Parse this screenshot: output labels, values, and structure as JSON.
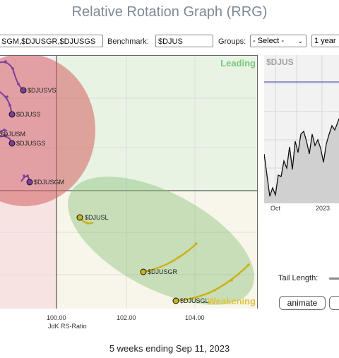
{
  "title": "Relative Rotation Graph (RRG)",
  "controls": {
    "symbols_value": "SGM,$DJUSGR,$DJUSGS",
    "benchmark_label": "Benchmark:",
    "benchmark_value": "$DJUS",
    "groups_label": "Groups:",
    "groups_selected": "- Select -",
    "period_value": "1 year"
  },
  "rrg": {
    "quadrant_labels": {
      "leading": "Leading",
      "weakening": "Weakening"
    },
    "x_ticks": [
      "100.00",
      "102.00",
      "104.00"
    ],
    "x_axis_label": "JdK RS-Ratio",
    "securities": [
      {
        "symbol": "$DJUSVS",
        "color": "#7b3f99"
      },
      {
        "symbol": "$DJUSS",
        "color": "#7b3f99"
      },
      {
        "symbol": "$DJUSM",
        "color": "#7b3f99"
      },
      {
        "symbol": "$DJUSGS",
        "color": "#7b3f99"
      },
      {
        "symbol": "$DJUSGM",
        "color": "#7b3f99"
      },
      {
        "symbol": "$DJUSL",
        "color": "#c9b21a"
      },
      {
        "symbol": "$DJUSGR",
        "color": "#c9b21a"
      },
      {
        "symbol": "$DJUSGL",
        "color": "#c9b21a"
      }
    ]
  },
  "price_chart": {
    "symbol": "$DJUS",
    "x_labels": [
      "Oct",
      "2023"
    ]
  },
  "tail_length_label": "Tail Length:",
  "animate_label": "animate",
  "footer": "5 weeks ending Sep 11, 2023",
  "colors": {
    "leading": "#e6f2e1",
    "weakening": "#f8f6ea",
    "lagging": "#f8e1e1",
    "purple": "#7b3f99",
    "yellow": "#c9b21a"
  }
}
